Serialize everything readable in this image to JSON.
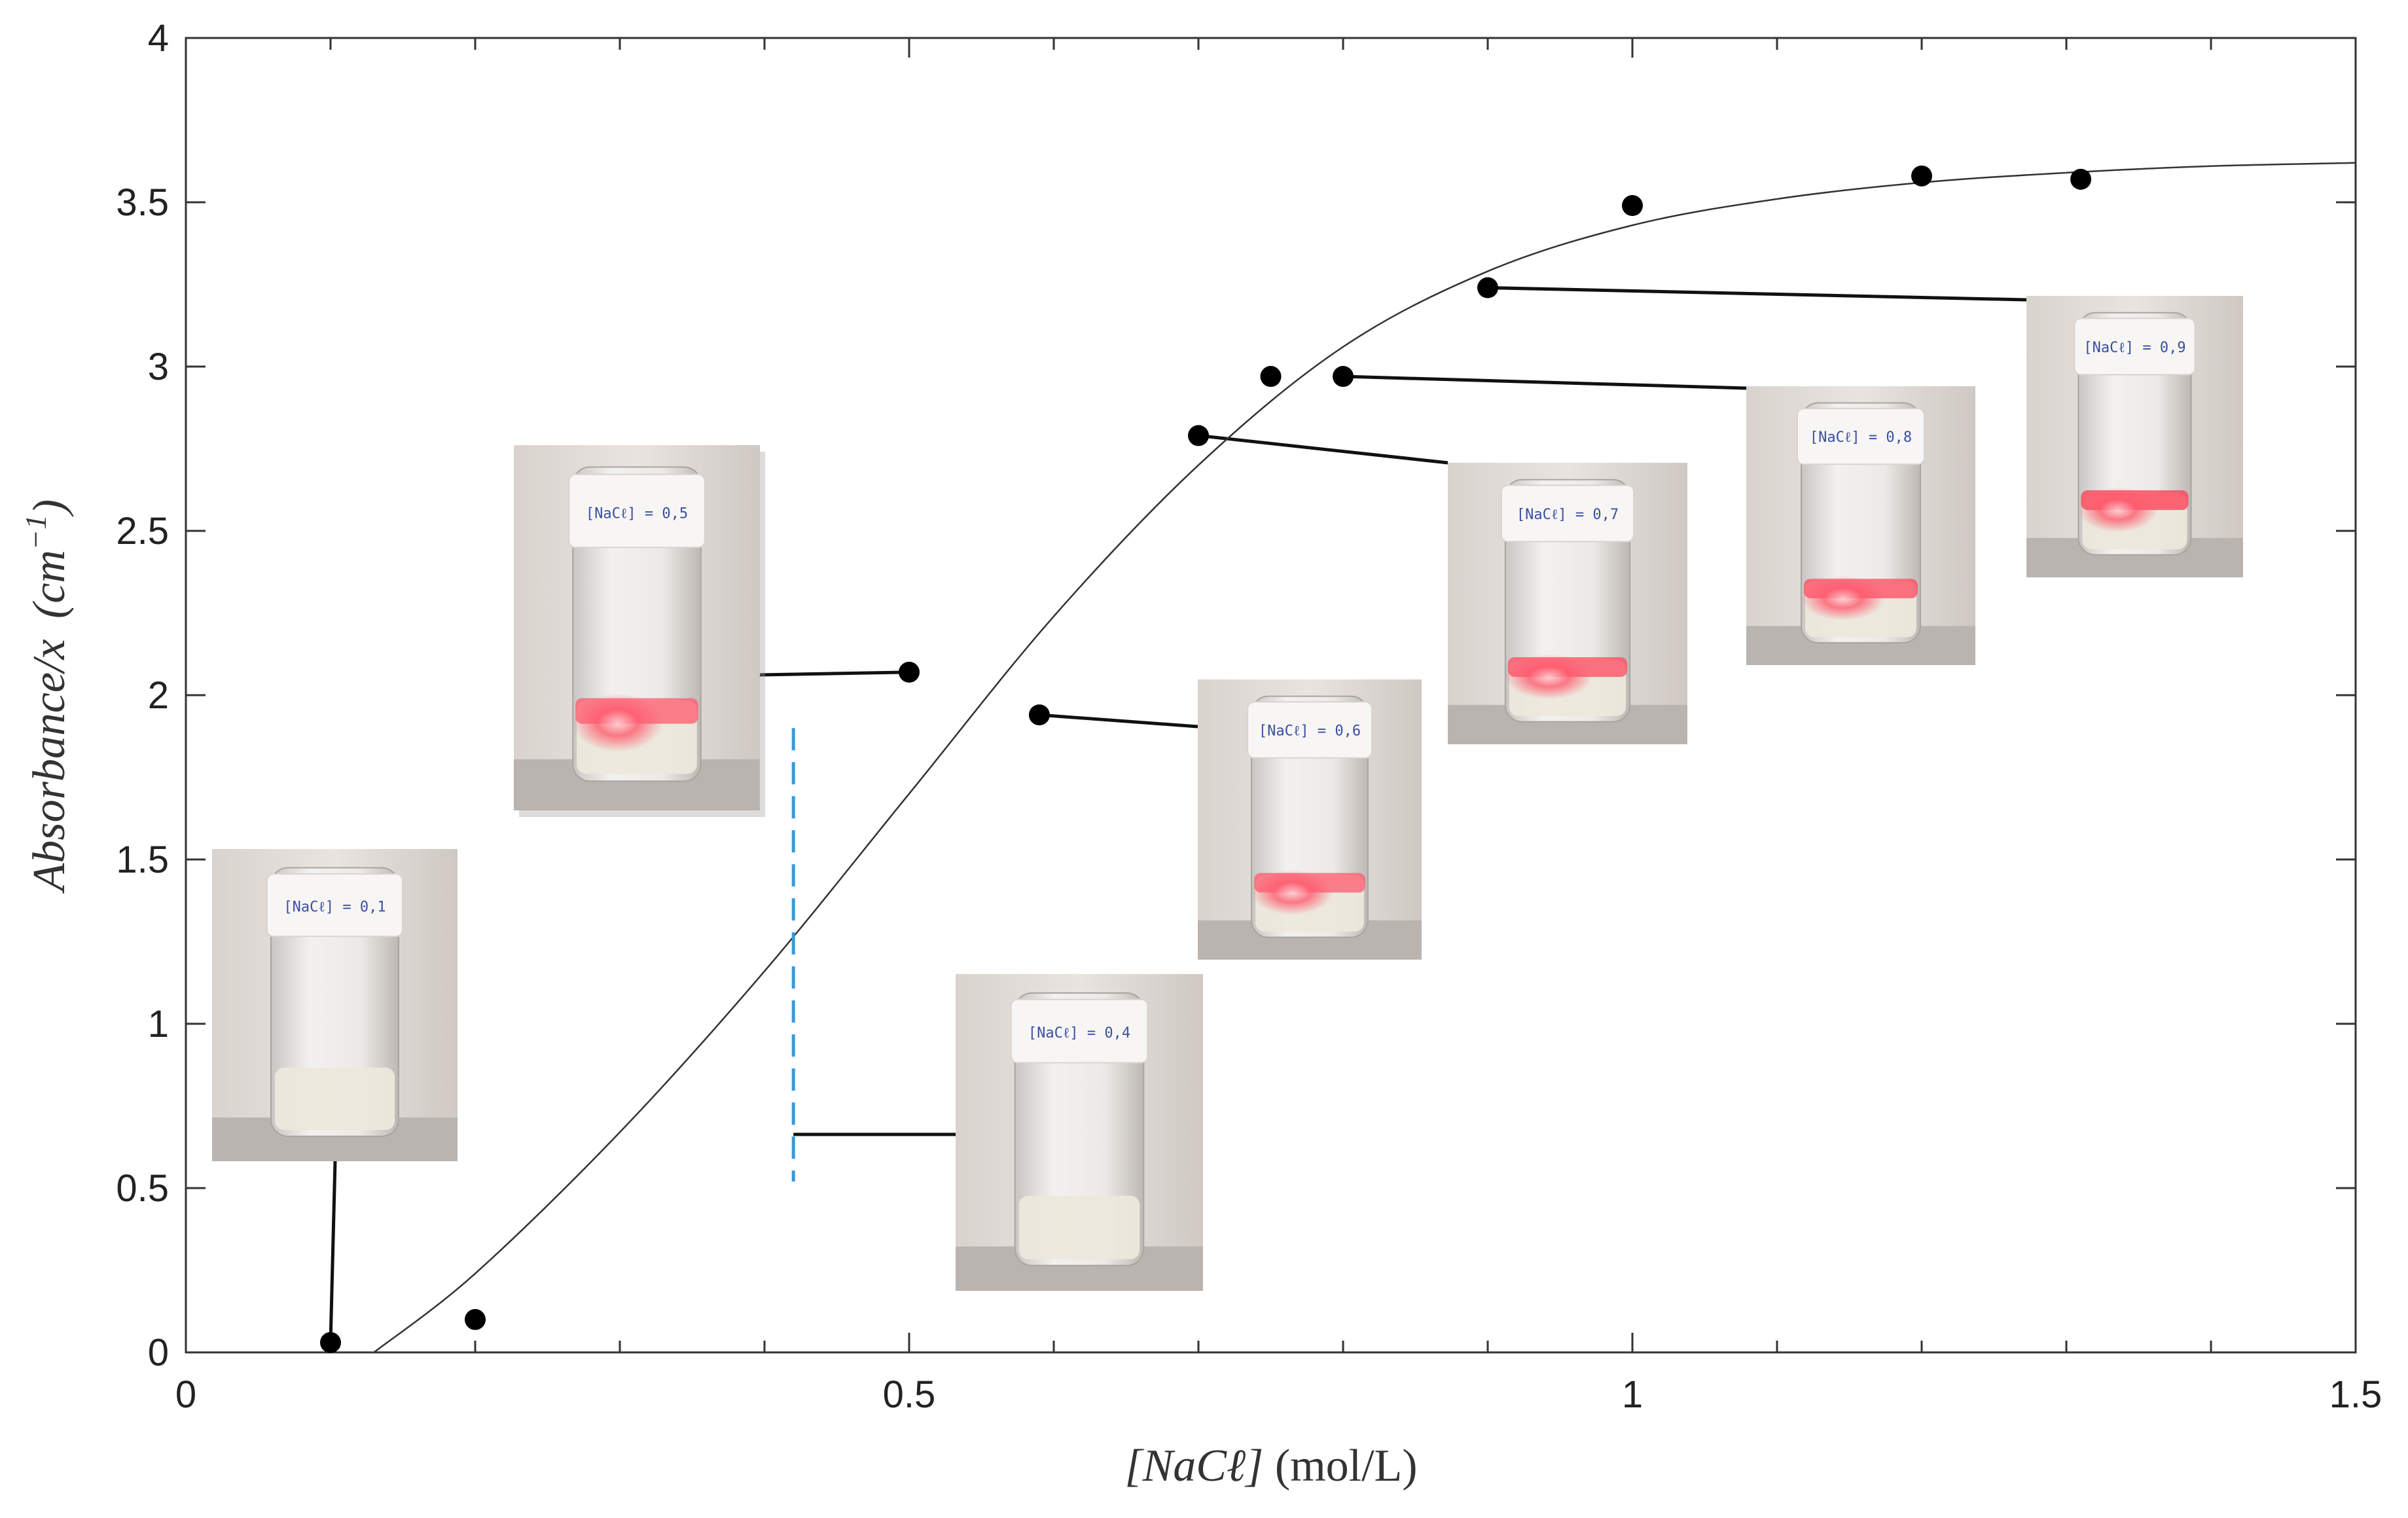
{
  "chart_data": {
    "type": "scatter",
    "title": "",
    "xlabel": "[NaCℓ] (mol/L)",
    "xlabel_parts": {
      "var": "[NaCℓ]",
      "unit": " (mol/L)"
    },
    "ylabel": "Absorbance/x (cm⁻¹)",
    "ylabel_parts": {
      "var": "Absorbance/x",
      "unit": "(cm",
      "exp": "−1",
      "close": ")"
    },
    "xlim": [
      0,
      1.5
    ],
    "ylim": [
      0,
      4
    ],
    "x_ticks": [
      0,
      0.5,
      1,
      1.5
    ],
    "x_tick_labels": [
      "0",
      "0.5",
      "1",
      "1.5"
    ],
    "x_minor_ticks": [
      0.1,
      0.2,
      0.3,
      0.4,
      0.6,
      0.7,
      0.8,
      0.9,
      1.1,
      1.2,
      1.3,
      1.4
    ],
    "y_ticks": [
      0,
      0.5,
      1,
      1.5,
      2,
      2.5,
      3,
      3.5,
      4
    ],
    "y_tick_labels": [
      "0",
      "0.5",
      "1",
      "1.5",
      "2",
      "2.5",
      "3",
      "3.5",
      "4"
    ],
    "grid": false,
    "series": [
      {
        "name": "measured",
        "marker": "filled-circle",
        "color": "#000000",
        "points": [
          {
            "x": 0.1,
            "y": 0.03
          },
          {
            "x": 0.2,
            "y": 0.1
          },
          {
            "x": 0.5,
            "y": 2.07
          },
          {
            "x": 0.59,
            "y": 1.94
          },
          {
            "x": 0.7,
            "y": 2.79
          },
          {
            "x": 0.75,
            "y": 2.97
          },
          {
            "x": 0.8,
            "y": 2.97
          },
          {
            "x": 0.9,
            "y": 3.24
          },
          {
            "x": 1.0,
            "y": 3.49
          },
          {
            "x": 1.2,
            "y": 3.58
          },
          {
            "x": 1.31,
            "y": 3.57
          }
        ]
      },
      {
        "name": "fit",
        "type": "line",
        "color": "#333333",
        "points": [
          {
            "x": 0.13,
            "y": 0.0
          },
          {
            "x": 0.2,
            "y": 0.24
          },
          {
            "x": 0.3,
            "y": 0.67
          },
          {
            "x": 0.4,
            "y": 1.16
          },
          {
            "x": 0.5,
            "y": 1.7
          },
          {
            "x": 0.6,
            "y": 2.24
          },
          {
            "x": 0.7,
            "y": 2.7
          },
          {
            "x": 0.8,
            "y": 3.06
          },
          {
            "x": 0.9,
            "y": 3.29
          },
          {
            "x": 1.0,
            "y": 3.43
          },
          {
            "x": 1.1,
            "y": 3.51
          },
          {
            "x": 1.2,
            "y": 3.56
          },
          {
            "x": 1.3,
            "y": 3.59
          },
          {
            "x": 1.4,
            "y": 3.61
          },
          {
            "x": 1.5,
            "y": 3.62
          }
        ]
      }
    ],
    "reference_line": {
      "x": 0.42,
      "y_range": [
        0.52,
        1.9
      ],
      "style": "dashed",
      "color": "#3a9ad9"
    },
    "annotations": [
      {
        "label": "[NaCℓ] = 0,1",
        "tint": "#ffffff"
      },
      {
        "label": "[NaCℓ] = 0,5",
        "tint": "#ff5a6e"
      },
      {
        "label": "[NaCℓ] = 0,4",
        "tint": "#ffffff"
      },
      {
        "label": "[NaCℓ] = 0,6",
        "tint": "#ff5a6e"
      },
      {
        "label": "[NaCℓ] = 0,7",
        "tint": "#ff4a5e"
      },
      {
        "label": "[NaCℓ] = 0,8",
        "tint": "#ff4a5e"
      },
      {
        "label": "[NaCℓ] = 0,9",
        "tint": "#ff3a50"
      }
    ]
  }
}
